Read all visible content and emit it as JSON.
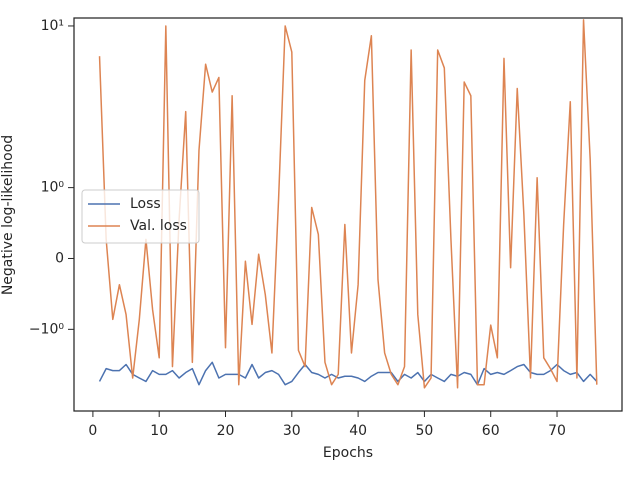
{
  "chart_data": {
    "type": "line",
    "xlabel": "Epochs",
    "ylabel": "Negative log-likelihood",
    "yscale": "symlog",
    "linthresh": 1,
    "xlim": [
      -2.85,
      79.8
    ],
    "ylim": [
      -3.2,
      11.2
    ],
    "xticks": [
      0,
      10,
      20,
      30,
      40,
      50,
      60,
      70
    ],
    "yticks": [
      {
        "value": 10,
        "label": "10¹"
      },
      {
        "value": 1,
        "label": "10⁰"
      },
      0,
      {
        "value": -1,
        "label": "−10⁰"
      }
    ],
    "legend": "center left",
    "grid": false,
    "x": [
      1,
      2,
      3,
      4,
      5,
      6,
      7,
      8,
      9,
      10,
      11,
      12,
      13,
      14,
      15,
      16,
      17,
      18,
      19,
      20,
      21,
      22,
      23,
      24,
      25,
      26,
      27,
      28,
      29,
      30,
      31,
      32,
      33,
      34,
      35,
      36,
      37,
      38,
      39,
      40,
      41,
      42,
      43,
      44,
      45,
      46,
      47,
      48,
      49,
      50,
      51,
      52,
      53,
      54,
      55,
      56,
      57,
      58,
      59,
      60,
      61,
      62,
      63,
      64,
      65,
      66,
      67,
      68,
      69,
      70,
      71,
      72,
      73,
      74,
      75,
      76
    ],
    "series": [
      {
        "name": "Loss",
        "color": "#4c72b0",
        "values": [
          -2.1,
          -1.75,
          -1.8,
          -1.8,
          -1.65,
          -1.9,
          -2.0,
          -2.1,
          -1.8,
          -1.9,
          -1.9,
          -1.8,
          -2.0,
          -1.85,
          -1.75,
          -2.2,
          -1.8,
          -1.6,
          -2.0,
          -1.9,
          -1.9,
          -1.9,
          -2.0,
          -1.65,
          -2.0,
          -1.85,
          -1.8,
          -1.9,
          -2.2,
          -2.1,
          -1.85,
          -1.65,
          -1.85,
          -1.9,
          -2.0,
          -1.9,
          -2.0,
          -1.95,
          -1.95,
          -2.0,
          -2.1,
          -1.95,
          -1.85,
          -1.85,
          -1.85,
          -2.1,
          -1.9,
          -2.0,
          -1.85,
          -2.1,
          -1.9,
          -2.0,
          -2.1,
          -1.9,
          -1.95,
          -1.85,
          -1.9,
          -2.2,
          -1.75,
          -1.9,
          -1.85,
          -1.9,
          -1.8,
          -1.7,
          -1.65,
          -1.85,
          -1.9,
          -1.9,
          -1.8,
          -1.65,
          -1.8,
          -1.9,
          -1.85,
          -2.1,
          -1.9,
          -2.1
        ]
      },
      {
        "name": "Val. loss",
        "color": "#dd8452",
        "values": [
          6.5,
          0.27,
          -0.86,
          -0.37,
          -0.79,
          -2.0,
          -0.86,
          0.27,
          -0.72,
          -1.5,
          10,
          -1.7,
          0.55,
          2.95,
          -1.6,
          1.7,
          5.8,
          3.9,
          4.8,
          -1.3,
          3.7,
          -2.2,
          -0.04,
          -0.93,
          0.06,
          -0.51,
          -1.4,
          0.83,
          10,
          6.9,
          -1.35,
          -1.7,
          0.72,
          0.34,
          -1.6,
          -2.2,
          -1.9,
          0.48,
          -1.4,
          -0.37,
          4.6,
          8.7,
          -0.3,
          -1.4,
          -1.9,
          -2.2,
          -1.7,
          7.1,
          -0.79,
          -2.3,
          -2.0,
          7.1,
          5.5,
          0.27,
          -2.3,
          4.5,
          3.7,
          -2.2,
          -2.2,
          -0.94,
          -1.5,
          6.3,
          -0.13,
          4.1,
          0.62,
          -2.0,
          1.15,
          -1.5,
          -1.75,
          -2.1,
          0.48,
          3.4,
          -2.0,
          10.9,
          1.5,
          -2.2
        ]
      }
    ]
  }
}
